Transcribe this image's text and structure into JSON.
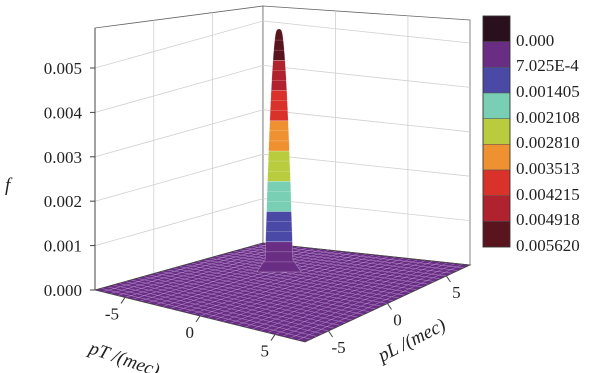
{
  "chart_data": {
    "type": "surface3d",
    "title": "",
    "zlabel": "f",
    "xlabel": "pT /(mec)",
    "ylabel": "pL /(mec)",
    "x_ticks": [
      "-5",
      "0",
      "5"
    ],
    "y_ticks": [
      "5",
      "0",
      "-5"
    ],
    "z_ticks": [
      "0.000",
      "0.001",
      "0.002",
      "0.003",
      "0.004",
      "0.005"
    ],
    "xlim": [
      -7,
      7
    ],
    "ylim": [
      -7,
      7
    ],
    "zlim": [
      0,
      0.0057
    ],
    "peak": {
      "x": 0,
      "y": 0,
      "f": 0.00562
    },
    "colorbar": {
      "labels": [
        "0.000",
        "7.025E-4",
        "0.001405",
        "0.002108",
        "0.002810",
        "0.003513",
        "0.004215",
        "0.004918",
        "0.005620"
      ],
      "colors": [
        "#2a0f1c",
        "#6a2d84",
        "#4a4aa6",
        "#79cfb3",
        "#b8cc3e",
        "#ef9131",
        "#d8322b",
        "#b0232e",
        "#5a141d"
      ]
    },
    "base_color": "#6a2d84",
    "grid": true
  }
}
